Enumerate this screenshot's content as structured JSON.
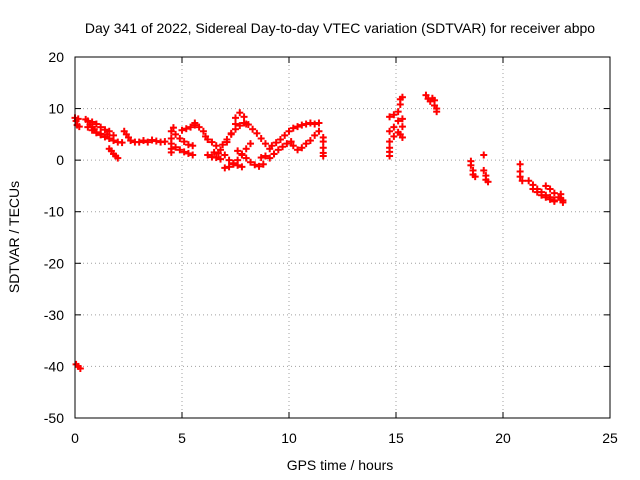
{
  "chart_data": {
    "type": "scatter",
    "title": "Day 341 of 2022, Sidereal Day-to-day VTEC variation (SDTVAR) for receiver abpo",
    "xlabel": "GPS time / hours",
    "ylabel": "SDTVAR / TECUs",
    "xlim": [
      0,
      25
    ],
    "ylim": [
      -50,
      20
    ],
    "xticks": [
      "0",
      "5",
      "10",
      "15",
      "20",
      "25"
    ],
    "yticks": [
      "-50",
      "-40",
      "-30",
      "-20",
      "-10",
      "0",
      "10",
      "20"
    ],
    "grid": true,
    "marker": "+",
    "color": "#ff0000",
    "series": [
      {
        "name": "SDTVAR",
        "points": [
          [
            0.0,
            8.2
          ],
          [
            0.05,
            7.6
          ],
          [
            0.1,
            6.8
          ],
          [
            0.15,
            8.0
          ],
          [
            0.2,
            6.5
          ],
          [
            0.05,
            -39.6
          ],
          [
            0.15,
            -40.0
          ],
          [
            0.25,
            -40.4
          ],
          [
            0.5,
            7.9
          ],
          [
            0.6,
            7.6
          ],
          [
            0.7,
            6.9
          ],
          [
            0.8,
            6.4
          ],
          [
            0.9,
            6.0
          ],
          [
            1.0,
            5.4
          ],
          [
            1.2,
            5.1
          ],
          [
            1.5,
            5.0
          ],
          [
            1.8,
            4.8
          ],
          [
            0.6,
            6.4
          ],
          [
            0.8,
            5.8
          ],
          [
            1.0,
            5.3
          ],
          [
            1.2,
            4.9
          ],
          [
            1.4,
            4.5
          ],
          [
            1.6,
            4.2
          ],
          [
            1.8,
            3.8
          ],
          [
            2.0,
            3.5
          ],
          [
            2.2,
            3.4
          ],
          [
            0.8,
            7.4
          ],
          [
            1.0,
            7.0
          ],
          [
            1.2,
            6.4
          ],
          [
            1.4,
            5.9
          ],
          [
            1.6,
            5.6
          ],
          [
            1.6,
            2.2
          ],
          [
            1.7,
            1.8
          ],
          [
            1.8,
            1.2
          ],
          [
            1.9,
            0.8
          ],
          [
            2.0,
            0.4
          ],
          [
            2.3,
            5.6
          ],
          [
            2.4,
            5.0
          ],
          [
            2.5,
            4.4
          ],
          [
            2.6,
            3.8
          ],
          [
            2.8,
            3.5
          ],
          [
            3.0,
            3.5
          ],
          [
            3.2,
            3.8
          ],
          [
            3.4,
            3.5
          ],
          [
            3.6,
            3.9
          ],
          [
            3.8,
            3.7
          ],
          [
            4.0,
            3.5
          ],
          [
            4.2,
            3.6
          ],
          [
            4.5,
            1.5
          ],
          [
            4.5,
            2.2
          ],
          [
            4.5,
            3.2
          ],
          [
            4.5,
            4.2
          ],
          [
            4.5,
            5.6
          ],
          [
            4.6,
            6.3
          ],
          [
            4.7,
            2.5
          ],
          [
            4.9,
            2.0
          ],
          [
            5.1,
            1.6
          ],
          [
            5.3,
            1.3
          ],
          [
            5.5,
            1.0
          ],
          [
            4.7,
            5.0
          ],
          [
            4.9,
            4.2
          ],
          [
            5.1,
            3.6
          ],
          [
            5.3,
            3.0
          ],
          [
            5.5,
            2.8
          ],
          [
            5.0,
            5.8
          ],
          [
            5.2,
            6.1
          ],
          [
            5.4,
            6.4
          ],
          [
            5.6,
            6.8
          ],
          [
            5.6,
            7.2
          ],
          [
            5.8,
            6.4
          ],
          [
            6.0,
            5.6
          ],
          [
            6.1,
            4.6
          ],
          [
            6.2,
            1.0
          ],
          [
            6.4,
            0.6
          ],
          [
            6.6,
            0.5
          ],
          [
            6.8,
            0.2
          ],
          [
            6.2,
            4.0
          ],
          [
            6.4,
            3.5
          ],
          [
            6.6,
            2.8
          ],
          [
            6.8,
            2.0
          ],
          [
            7.0,
            1.0
          ],
          [
            7.2,
            0.0
          ],
          [
            7.4,
            -0.6
          ],
          [
            7.6,
            -1.0
          ],
          [
            7.8,
            -1.3
          ],
          [
            6.5,
            1.5
          ],
          [
            6.7,
            1.3
          ],
          [
            6.9,
            3.0
          ],
          [
            7.1,
            4.0
          ],
          [
            7.3,
            5.0
          ],
          [
            7.5,
            6.0
          ],
          [
            7.7,
            6.7
          ],
          [
            7.9,
            7.2
          ],
          [
            8.1,
            6.9
          ],
          [
            8.3,
            6.0
          ],
          [
            8.5,
            5.2
          ],
          [
            8.7,
            4.2
          ],
          [
            8.9,
            3.2
          ],
          [
            9.1,
            2.2
          ],
          [
            9.3,
            1.2
          ],
          [
            7.0,
            -1.5
          ],
          [
            7.2,
            -1.3
          ],
          [
            7.4,
            -0.8
          ],
          [
            7.6,
            0.0
          ],
          [
            7.8,
            1.2
          ],
          [
            8.0,
            2.2
          ],
          [
            8.2,
            3.2
          ],
          [
            7.1,
            3.5
          ],
          [
            7.3,
            5.2
          ],
          [
            7.5,
            7.0
          ],
          [
            7.5,
            8.2
          ],
          [
            7.7,
            9.2
          ],
          [
            7.9,
            8.4
          ],
          [
            8.0,
            7.0
          ],
          [
            7.6,
            1.8
          ],
          [
            7.8,
            1.0
          ],
          [
            8.0,
            0.4
          ],
          [
            8.2,
            -0.4
          ],
          [
            8.4,
            -0.9
          ],
          [
            8.6,
            -1.2
          ],
          [
            8.8,
            -0.8
          ],
          [
            8.7,
            0.5
          ],
          [
            8.9,
            0.8
          ],
          [
            9.1,
            0.4
          ],
          [
            9.3,
            1.2
          ],
          [
            9.5,
            2.0
          ],
          [
            9.7,
            2.6
          ],
          [
            9.9,
            3.2
          ],
          [
            10.1,
            3.6
          ],
          [
            9.2,
            2.8
          ],
          [
            9.4,
            3.4
          ],
          [
            9.6,
            4.0
          ],
          [
            9.8,
            4.8
          ],
          [
            10.0,
            5.6
          ],
          [
            10.2,
            6.2
          ],
          [
            10.4,
            6.5
          ],
          [
            10.6,
            6.8
          ],
          [
            10.8,
            7.0
          ],
          [
            11.0,
            7.2
          ],
          [
            11.2,
            7.0
          ],
          [
            11.4,
            7.2
          ],
          [
            10.2,
            2.8
          ],
          [
            10.4,
            2.0
          ],
          [
            10.6,
            2.4
          ],
          [
            10.8,
            3.2
          ],
          [
            11.0,
            3.8
          ],
          [
            11.2,
            4.8
          ],
          [
            11.4,
            5.6
          ],
          [
            11.6,
            4.4
          ],
          [
            11.6,
            3.6
          ],
          [
            11.6,
            2.4
          ],
          [
            11.6,
            1.4
          ],
          [
            11.6,
            0.8
          ],
          [
            14.7,
            8.4
          ],
          [
            14.7,
            5.6
          ],
          [
            14.7,
            3.6
          ],
          [
            14.7,
            2.4
          ],
          [
            14.7,
            1.6
          ],
          [
            14.7,
            0.8
          ],
          [
            14.9,
            8.8
          ],
          [
            14.9,
            6.4
          ],
          [
            14.9,
            4.6
          ],
          [
            15.1,
            5.4
          ],
          [
            15.1,
            7.6
          ],
          [
            15.1,
            9.4
          ],
          [
            15.2,
            10.8
          ],
          [
            15.2,
            11.8
          ],
          [
            15.3,
            12.2
          ],
          [
            15.2,
            5.0
          ],
          [
            15.3,
            6.5
          ],
          [
            15.3,
            8.0
          ],
          [
            15.3,
            4.4
          ],
          [
            16.4,
            12.6
          ],
          [
            16.5,
            11.9
          ],
          [
            16.6,
            11.4
          ],
          [
            16.7,
            12.0
          ],
          [
            16.8,
            11.6
          ],
          [
            16.8,
            10.6
          ],
          [
            16.9,
            10.0
          ],
          [
            16.9,
            9.4
          ],
          [
            18.5,
            -0.2
          ],
          [
            18.5,
            -1.0
          ],
          [
            18.6,
            -2.0
          ],
          [
            18.6,
            -2.8
          ],
          [
            18.7,
            -3.2
          ],
          [
            19.1,
            1.0
          ],
          [
            19.1,
            -2.0
          ],
          [
            19.2,
            -3.0
          ],
          [
            19.2,
            -3.8
          ],
          [
            19.3,
            -4.2
          ],
          [
            20.8,
            -0.8
          ],
          [
            20.8,
            -2.2
          ],
          [
            20.8,
            -3.2
          ],
          [
            20.9,
            -4.0
          ],
          [
            21.2,
            -4.0
          ],
          [
            21.4,
            -4.8
          ],
          [
            21.6,
            -5.6
          ],
          [
            21.8,
            -6.2
          ],
          [
            22.0,
            -6.8
          ],
          [
            22.2,
            -7.2
          ],
          [
            22.4,
            -7.8
          ],
          [
            21.4,
            -5.6
          ],
          [
            21.6,
            -6.2
          ],
          [
            21.8,
            -6.8
          ],
          [
            22.0,
            -7.2
          ],
          [
            22.2,
            -7.6
          ],
          [
            22.4,
            -8.0
          ],
          [
            22.0,
            -5.0
          ],
          [
            22.2,
            -5.6
          ],
          [
            22.4,
            -6.4
          ],
          [
            22.6,
            -7.2
          ],
          [
            22.7,
            -6.6
          ],
          [
            22.7,
            -7.4
          ],
          [
            22.8,
            -7.8
          ],
          [
            22.8,
            -8.2
          ]
        ]
      }
    ]
  }
}
